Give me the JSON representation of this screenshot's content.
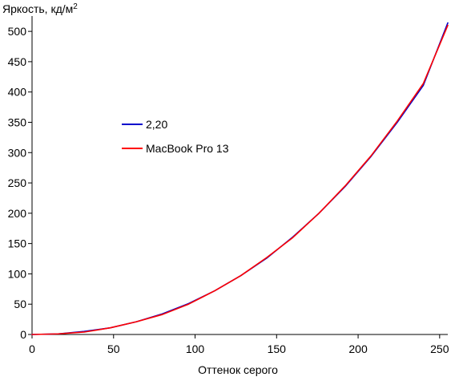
{
  "chart_data": {
    "type": "line",
    "xlabel": "Оттенок серого",
    "ylabel": "Яркость, кд/м",
    "ylabel_sup": "2",
    "xlim": [
      0,
      255
    ],
    "ylim": [
      0,
      520
    ],
    "xticks": [
      0,
      50,
      100,
      150,
      200,
      250
    ],
    "yticks": [
      0,
      50,
      100,
      150,
      200,
      250,
      300,
      350,
      400,
      450,
      500
    ],
    "grid": false,
    "legend_position": "center-left",
    "series": [
      {
        "name": "2,20",
        "color": "#0000cc",
        "x": [
          0,
          16,
          32,
          48,
          64,
          80,
          96,
          112,
          128,
          144,
          160,
          176,
          192,
          208,
          224,
          240,
          255
        ],
        "y": [
          0,
          1,
          5,
          11,
          21,
          34,
          51,
          72,
          97,
          126,
          161,
          200,
          244,
          294,
          350,
          411,
          514
        ]
      },
      {
        "name": "MacBook Pro 13",
        "color": "#ff0000",
        "x": [
          0,
          16,
          32,
          48,
          64,
          80,
          96,
          112,
          128,
          144,
          160,
          176,
          192,
          208,
          224,
          240,
          255
        ],
        "y": [
          0,
          1,
          4,
          11,
          21,
          33,
          50,
          72,
          97,
          127,
          160,
          200,
          245,
          295,
          352,
          414,
          510
        ]
      }
    ]
  }
}
